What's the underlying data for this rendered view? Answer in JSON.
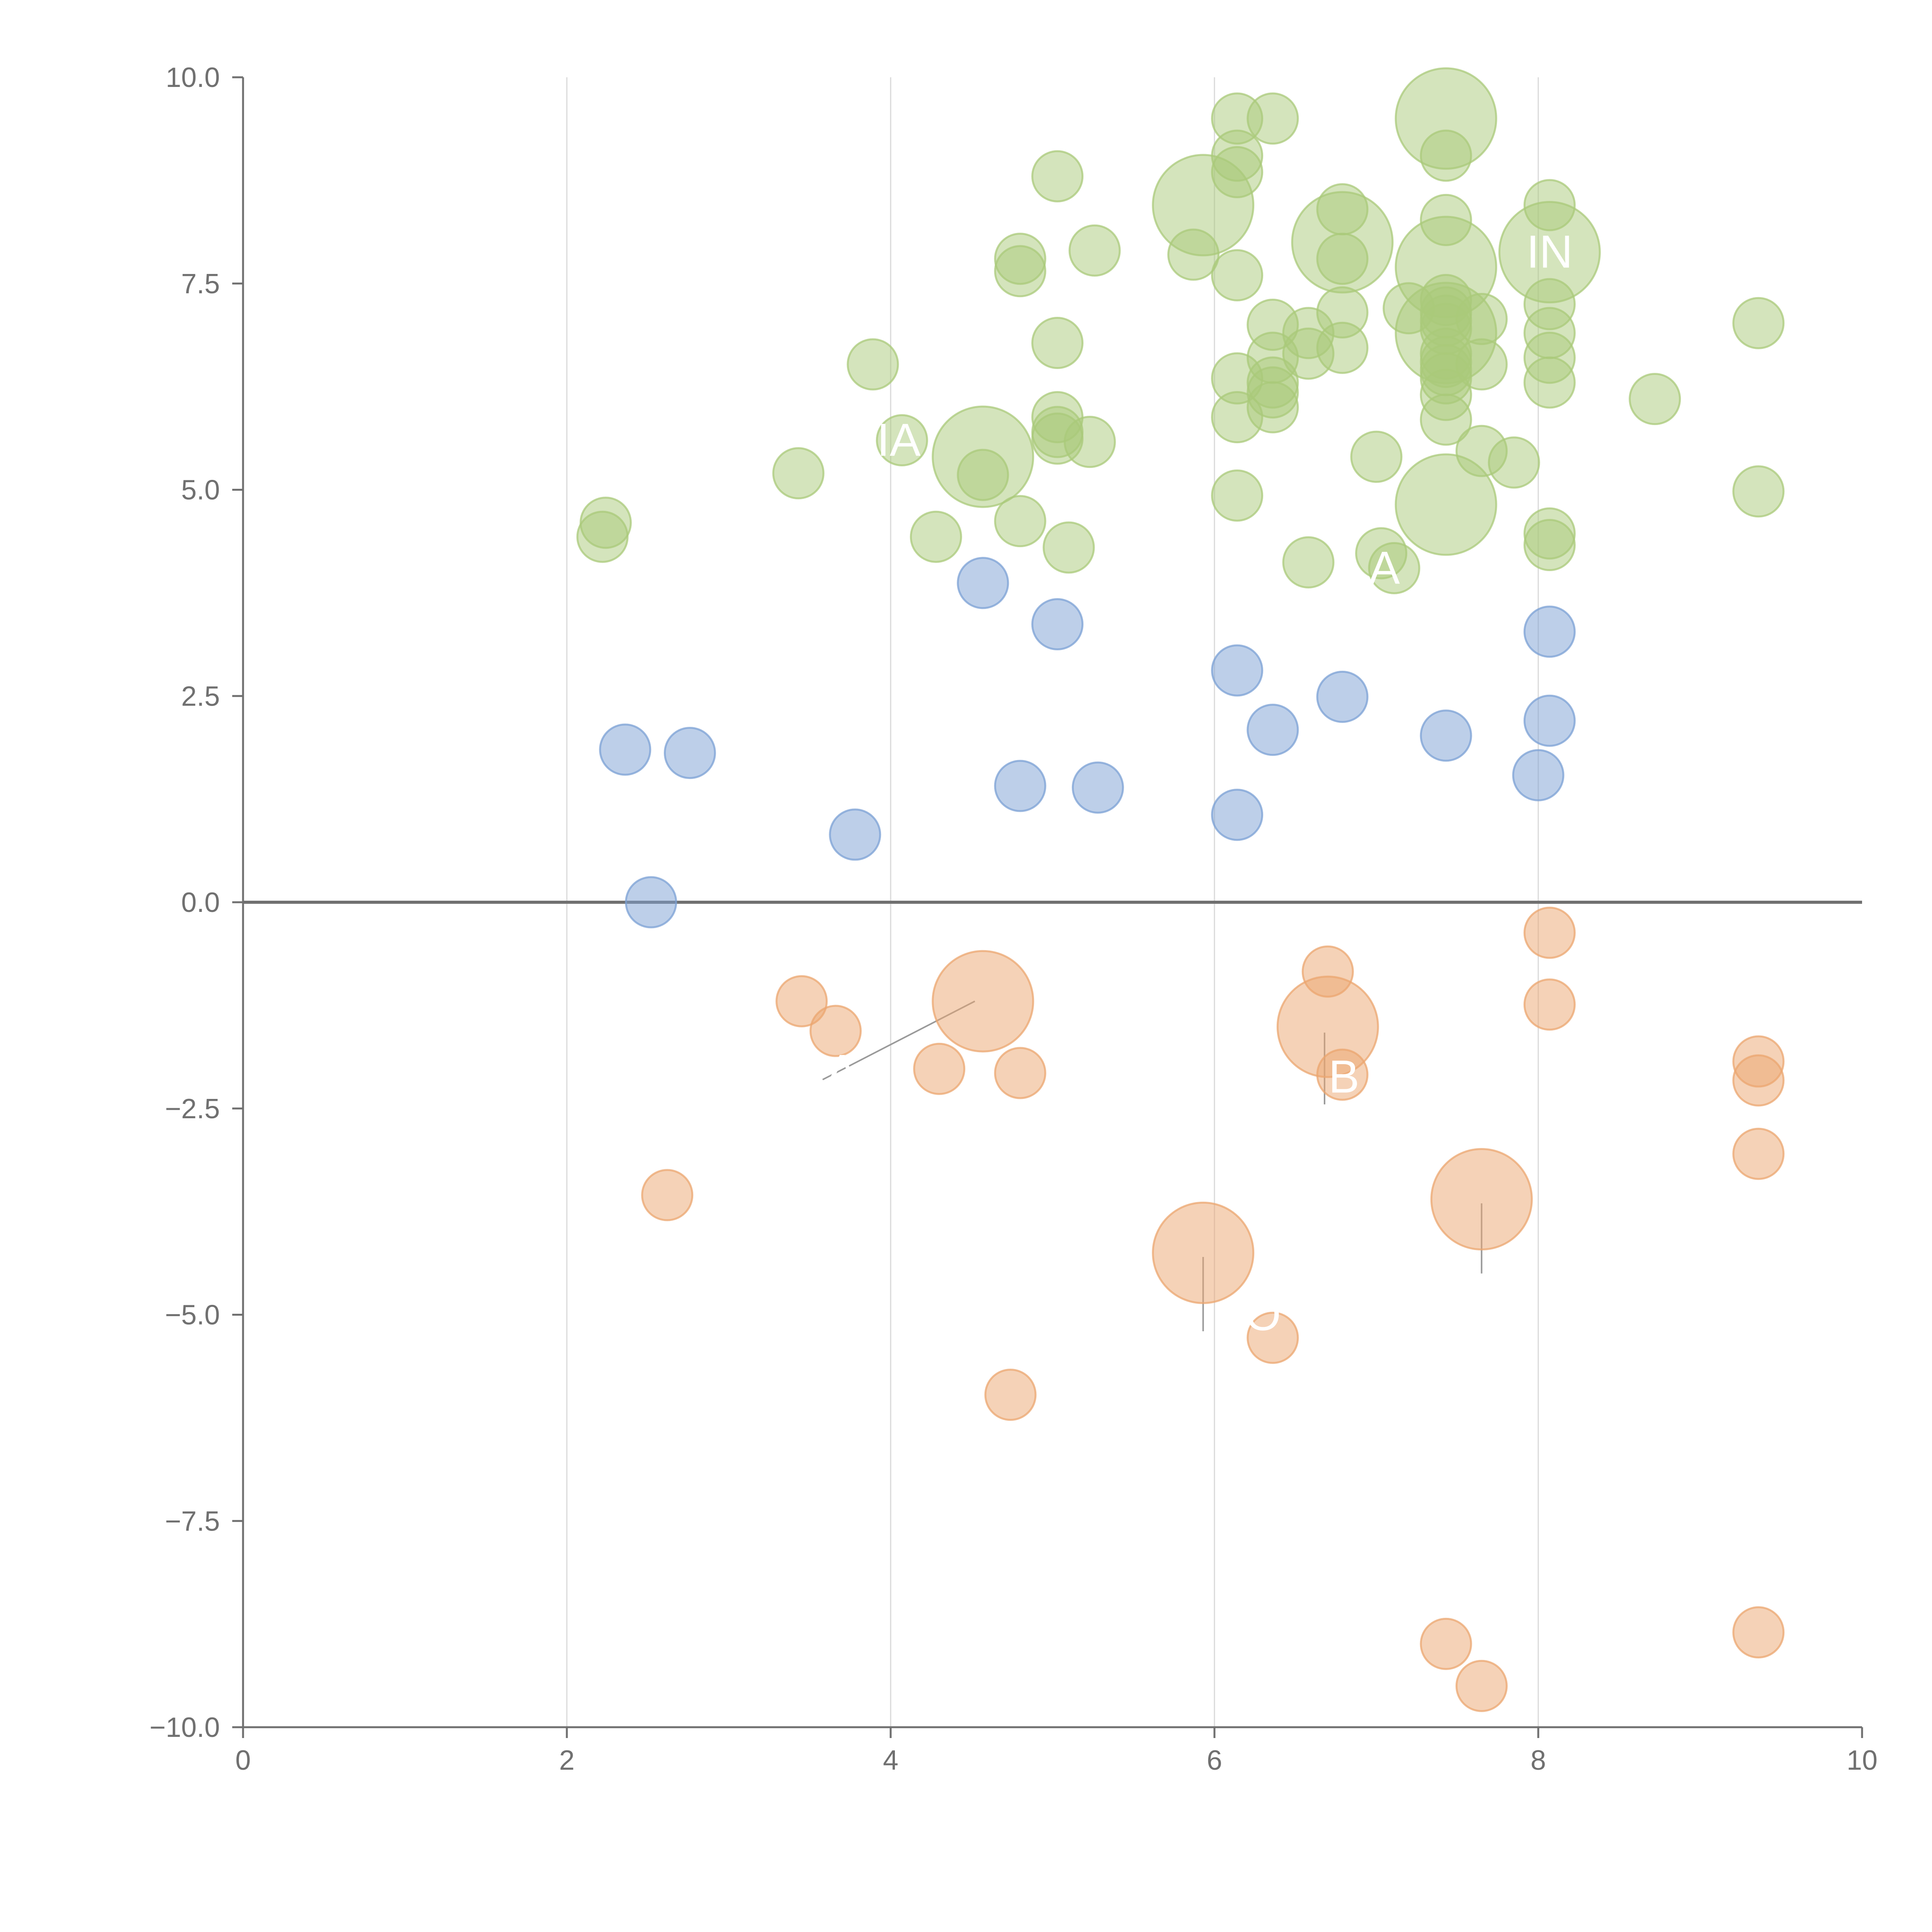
{
  "chart_data": {
    "type": "scatter",
    "title": "",
    "xlabel": "",
    "ylabel": "",
    "xlim": [
      0,
      10
    ],
    "ylim": [
      -10,
      10
    ],
    "x_ticks": [
      0,
      2,
      4,
      6,
      8,
      10
    ],
    "y_ticks": [
      -10,
      -7.5,
      -5,
      -2.5,
      0,
      2.5,
      5,
      7.5,
      10
    ],
    "x_tick_labels": [
      "0",
      "2",
      "4",
      "6",
      "8",
      "10"
    ],
    "y_tick_labels": [
      "−10.0",
      "−7.5",
      "−5.0",
      "−2.5",
      "0.0",
      "2.5",
      "5.0",
      "7.5",
      "10.0"
    ],
    "grid": "vertical",
    "zero_line": true,
    "colors": {
      "green": "#a9c97a",
      "blue": "#7ba0d4",
      "orange": "#eba56f",
      "axis": "#707070"
    },
    "series": [
      {
        "name": "positive-high",
        "color": "#a9c97a",
        "points": [
          {
            "x": 2.22,
            "y": 4.43,
            "size": 1
          },
          {
            "x": 2.24,
            "y": 4.6,
            "size": 1
          },
          {
            "x": 3.43,
            "y": 5.2,
            "size": 1
          },
          {
            "x": 3.89,
            "y": 6.52,
            "size": 1
          },
          {
            "x": 4.07,
            "y": 5.6,
            "size": 1
          },
          {
            "x": 4.28,
            "y": 4.43,
            "size": 1
          },
          {
            "x": 4.57,
            "y": 5.4,
            "size": 3
          },
          {
            "x": 4.57,
            "y": 5.18,
            "size": 1
          },
          {
            "x": 4.8,
            "y": 7.8,
            "size": 1
          },
          {
            "x": 4.8,
            "y": 7.65,
            "size": 1
          },
          {
            "x": 4.8,
            "y": 4.62,
            "size": 1
          },
          {
            "x": 5.03,
            "y": 8.8,
            "size": 1
          },
          {
            "x": 5.03,
            "y": 6.78,
            "size": 1
          },
          {
            "x": 5.03,
            "y": 5.88,
            "size": 1
          },
          {
            "x": 5.03,
            "y": 5.7,
            "size": 1
          },
          {
            "x": 5.03,
            "y": 5.62,
            "size": 1
          },
          {
            "x": 5.1,
            "y": 4.3,
            "size": 1
          },
          {
            "x": 5.23,
            "y": 5.58,
            "size": 1
          },
          {
            "x": 5.26,
            "y": 7.9,
            "size": 1
          },
          {
            "x": 5.87,
            "y": 7.85,
            "size": 1
          },
          {
            "x": 5.93,
            "y": 8.45,
            "size": 3
          },
          {
            "x": 6.14,
            "y": 9.5,
            "size": 1
          },
          {
            "x": 6.14,
            "y": 9.05,
            "size": 1
          },
          {
            "x": 6.14,
            "y": 8.85,
            "size": 1
          },
          {
            "x": 6.14,
            "y": 7.6,
            "size": 1
          },
          {
            "x": 6.14,
            "y": 6.35,
            "size": 1
          },
          {
            "x": 6.14,
            "y": 5.88,
            "size": 1
          },
          {
            "x": 6.14,
            "y": 4.93,
            "size": 1
          },
          {
            "x": 6.36,
            "y": 9.5,
            "size": 1
          },
          {
            "x": 6.36,
            "y": 7.0,
            "size": 1
          },
          {
            "x": 6.36,
            "y": 6.6,
            "size": 1
          },
          {
            "x": 6.36,
            "y": 6.3,
            "size": 1
          },
          {
            "x": 6.36,
            "y": 6.18,
            "size": 1
          },
          {
            "x": 6.36,
            "y": 6.0,
            "size": 1
          },
          {
            "x": 6.58,
            "y": 6.9,
            "size": 1
          },
          {
            "x": 6.58,
            "y": 6.65,
            "size": 1
          },
          {
            "x": 6.58,
            "y": 4.12,
            "size": 1
          },
          {
            "x": 6.79,
            "y": 8.4,
            "size": 1
          },
          {
            "x": 6.79,
            "y": 8.0,
            "size": 3
          },
          {
            "x": 6.79,
            "y": 7.8,
            "size": 1
          },
          {
            "x": 6.79,
            "y": 7.15,
            "size": 1
          },
          {
            "x": 6.79,
            "y": 6.72,
            "size": 1
          },
          {
            "x": 7.0,
            "y": 5.4,
            "size": 1
          },
          {
            "x": 7.03,
            "y": 4.23,
            "size": 1
          },
          {
            "x": 7.11,
            "y": 4.05,
            "size": 1
          },
          {
            "x": 7.2,
            "y": 7.2,
            "size": 1
          },
          {
            "x": 7.43,
            "y": 9.5,
            "size": 3
          },
          {
            "x": 7.43,
            "y": 9.05,
            "size": 1
          },
          {
            "x": 7.43,
            "y": 8.27,
            "size": 1
          },
          {
            "x": 7.43,
            "y": 7.7,
            "size": 3
          },
          {
            "x": 7.43,
            "y": 7.3,
            "size": 1
          },
          {
            "x": 7.43,
            "y": 7.15,
            "size": 1
          },
          {
            "x": 7.43,
            "y": 7.05,
            "size": 1
          },
          {
            "x": 7.43,
            "y": 6.95,
            "size": 1
          },
          {
            "x": 7.43,
            "y": 6.9,
            "size": 3
          },
          {
            "x": 7.43,
            "y": 6.65,
            "size": 1
          },
          {
            "x": 7.43,
            "y": 6.55,
            "size": 1
          },
          {
            "x": 7.43,
            "y": 6.45,
            "size": 1
          },
          {
            "x": 7.43,
            "y": 6.35,
            "size": 1
          },
          {
            "x": 7.43,
            "y": 6.15,
            "size": 1
          },
          {
            "x": 7.43,
            "y": 5.85,
            "size": 1
          },
          {
            "x": 7.43,
            "y": 4.82,
            "size": 3
          },
          {
            "x": 7.65,
            "y": 7.07,
            "size": 1
          },
          {
            "x": 7.65,
            "y": 6.52,
            "size": 1
          },
          {
            "x": 7.65,
            "y": 5.47,
            "size": 1
          },
          {
            "x": 7.85,
            "y": 5.33,
            "size": 1
          },
          {
            "x": 8.07,
            "y": 8.45,
            "size": 1
          },
          {
            "x": 8.07,
            "y": 7.88,
            "size": 3
          },
          {
            "x": 8.07,
            "y": 7.25,
            "size": 1
          },
          {
            "x": 8.07,
            "y": 6.9,
            "size": 1
          },
          {
            "x": 8.07,
            "y": 6.6,
            "size": 1
          },
          {
            "x": 8.07,
            "y": 6.3,
            "size": 1
          },
          {
            "x": 8.07,
            "y": 4.47,
            "size": 1
          },
          {
            "x": 8.07,
            "y": 4.33,
            "size": 1
          },
          {
            "x": 8.72,
            "y": 6.1,
            "size": 1
          },
          {
            "x": 9.36,
            "y": 7.02,
            "size": 1
          },
          {
            "x": 9.36,
            "y": 4.98,
            "size": 1
          }
        ]
      },
      {
        "name": "positive-low",
        "color": "#7ba0d4",
        "points": [
          {
            "x": 2.36,
            "y": 1.85,
            "size": 1
          },
          {
            "x": 2.52,
            "y": 0.0,
            "size": 1
          },
          {
            "x": 2.76,
            "y": 1.81,
            "size": 1
          },
          {
            "x": 3.78,
            "y": 0.82,
            "size": 1
          },
          {
            "x": 4.57,
            "y": 3.87,
            "size": 1
          },
          {
            "x": 4.8,
            "y": 1.41,
            "size": 1
          },
          {
            "x": 5.03,
            "y": 3.37,
            "size": 1
          },
          {
            "x": 5.28,
            "y": 1.39,
            "size": 1
          },
          {
            "x": 6.14,
            "y": 2.81,
            "size": 1
          },
          {
            "x": 6.14,
            "y": 1.06,
            "size": 1
          },
          {
            "x": 6.36,
            "y": 2.09,
            "size": 1
          },
          {
            "x": 6.79,
            "y": 2.49,
            "size": 1
          },
          {
            "x": 7.43,
            "y": 2.02,
            "size": 1
          },
          {
            "x": 8.0,
            "y": 1.54,
            "size": 1
          },
          {
            "x": 8.07,
            "y": 3.28,
            "size": 1
          },
          {
            "x": 8.07,
            "y": 2.2,
            "size": 1
          }
        ]
      },
      {
        "name": "negative",
        "color": "#eba56f",
        "points": [
          {
            "x": 2.62,
            "y": -3.55,
            "size": 1
          },
          {
            "x": 3.45,
            "y": -1.2,
            "size": 1
          },
          {
            "x": 3.66,
            "y": -1.56,
            "size": 1
          },
          {
            "x": 4.3,
            "y": -2.02,
            "size": 1
          },
          {
            "x": 4.57,
            "y": -1.2,
            "size": 3
          },
          {
            "x": 4.74,
            "y": -5.97,
            "size": 1
          },
          {
            "x": 4.8,
            "y": -2.07,
            "size": 1
          },
          {
            "x": 5.93,
            "y": -4.25,
            "size": 3
          },
          {
            "x": 6.36,
            "y": -5.28,
            "size": 1
          },
          {
            "x": 6.7,
            "y": -0.84,
            "size": 1
          },
          {
            "x": 6.7,
            "y": -1.51,
            "size": 3
          },
          {
            "x": 6.79,
            "y": -2.09,
            "size": 1
          },
          {
            "x": 7.43,
            "y": -8.99,
            "size": 1
          },
          {
            "x": 7.65,
            "y": -3.6,
            "size": 3
          },
          {
            "x": 7.65,
            "y": -9.5,
            "size": 1
          },
          {
            "x": 8.07,
            "y": -0.37,
            "size": 1
          },
          {
            "x": 8.07,
            "y": -1.24,
            "size": 1
          },
          {
            "x": 9.36,
            "y": -1.93,
            "size": 1
          },
          {
            "x": 9.36,
            "y": -2.16,
            "size": 1
          },
          {
            "x": 9.36,
            "y": -3.05,
            "size": 1
          },
          {
            "x": 9.36,
            "y": -8.85,
            "size": 1
          }
        ]
      }
    ],
    "connectors": [
      {
        "x1": 4.52,
        "y1": -1.2,
        "x2": 3.58,
        "y2": -2.15
      },
      {
        "x1": 6.68,
        "y1": -1.58,
        "x2": 6.68,
        "y2": -2.45
      },
      {
        "x1": 5.93,
        "y1": -4.3,
        "x2": 5.93,
        "y2": -5.2
      },
      {
        "x1": 7.65,
        "y1": -3.65,
        "x2": 7.65,
        "y2": -4.5
      }
    ],
    "annotations": [
      {
        "text": "IN",
        "x": 8.07,
        "y": 7.88
      },
      {
        "text": "IA",
        "x": 4.05,
        "y": 5.6
      },
      {
        "text": "A",
        "x": 7.05,
        "y": 4.05
      },
      {
        "text": "A",
        "x": 3.7,
        "y": -2.05
      },
      {
        "text": "B",
        "x": 6.8,
        "y": -2.12
      },
      {
        "text": "O",
        "x": 6.3,
        "y": -5.0
      }
    ]
  }
}
